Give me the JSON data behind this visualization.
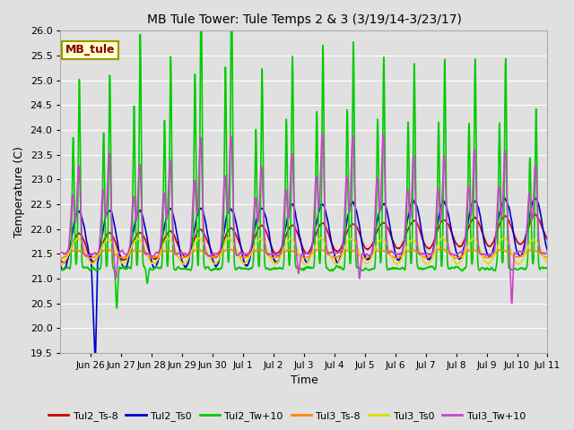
{
  "title": "MB Tule Tower: Tule Temps 2 & 3 (3/19/14-3/23/17)",
  "xlabel": "Time",
  "ylabel": "Temperature (C)",
  "ylim": [
    19.5,
    26.0
  ],
  "yticks": [
    19.5,
    20.0,
    20.5,
    21.0,
    21.5,
    22.0,
    22.5,
    23.0,
    23.5,
    24.0,
    24.5,
    25.0,
    25.5,
    26.0
  ],
  "background_color": "#e0e0e0",
  "plot_bg_color": "#e0e0e0",
  "grid_color": "#ffffff",
  "series": {
    "Tul2_Ts-8": {
      "color": "#cc0000",
      "lw": 1.2
    },
    "Tul2_Ts0": {
      "color": "#0000cc",
      "lw": 1.2
    },
    "Tul2_Tw+10": {
      "color": "#00cc00",
      "lw": 1.2
    },
    "Tul3_Ts-8": {
      "color": "#ff8800",
      "lw": 1.2
    },
    "Tul3_Ts0": {
      "color": "#dddd00",
      "lw": 1.2
    },
    "Tul3_Tw+10": {
      "color": "#cc44cc",
      "lw": 1.2
    }
  },
  "tick_labels": [
    "Jun 26",
    "Jun 27",
    "Jun 28",
    "Jun 29",
    "Jun 30",
    "Jul 1",
    "Jul 2",
    "Jul 3",
    "Jul 4",
    "Jul 5",
    "Jul 6",
    "Jul 7",
    "Jul 8",
    "Jul 9",
    "Jul 10",
    "Jul 11"
  ],
  "legend_label": "MB_tule",
  "legend_label_color": "#880000",
  "legend_box_facecolor": "#ffffcc",
  "legend_box_edgecolor": "#999900"
}
